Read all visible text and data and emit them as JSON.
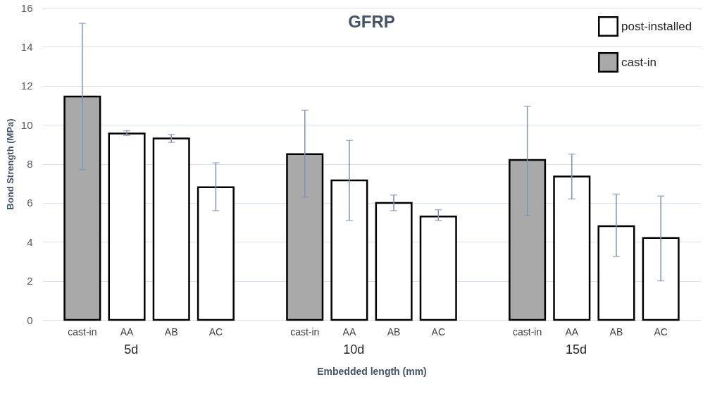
{
  "chart_data": {
    "type": "bar",
    "title": "GFRP",
    "xlabel": "Embedded length (mm)",
    "ylabel": "Bond Strength (MPa)",
    "categories": [
      "cast-in",
      "AA",
      "AB",
      "AC",
      "cast-in",
      "AA",
      "AB",
      "AC",
      "cast-in",
      "AA",
      "AB",
      "AC"
    ],
    "series": [
      {
        "name": "post-installed",
        "color": "#ffffff",
        "values": [
          null,
          9.55,
          9.3,
          6.8,
          null,
          7.15,
          6.0,
          5.3,
          null,
          7.35,
          4.8,
          4.2
        ],
        "errors": [
          null,
          [
            9.45,
            9.7
          ],
          [
            9.1,
            9.5
          ],
          [
            5.6,
            8.05
          ],
          null,
          [
            5.1,
            9.2
          ],
          [
            5.6,
            6.4
          ],
          [
            5.1,
            5.65
          ],
          null,
          [
            6.2,
            8.5
          ],
          [
            3.25,
            6.45
          ],
          [
            2.0,
            6.35
          ]
        ]
      },
      {
        "name": "cast-in",
        "color": "#a9a9a9",
        "values": [
          11.45,
          null,
          null,
          null,
          8.5,
          null,
          null,
          null,
          8.2,
          null,
          null,
          null
        ],
        "errors": [
          [
            7.7,
            15.2
          ],
          null,
          null,
          null,
          [
            6.3,
            10.75
          ],
          null,
          null,
          null,
          [
            5.35,
            10.95
          ],
          null,
          null,
          null
        ]
      }
    ],
    "annotations": [
      "5d",
      "10d",
      "15d"
    ],
    "ylim": [
      0,
      16
    ],
    "yticks": [
      0,
      2,
      4,
      6,
      8,
      10,
      12,
      14,
      16
    ],
    "grid": "y",
    "legend": "top right"
  }
}
